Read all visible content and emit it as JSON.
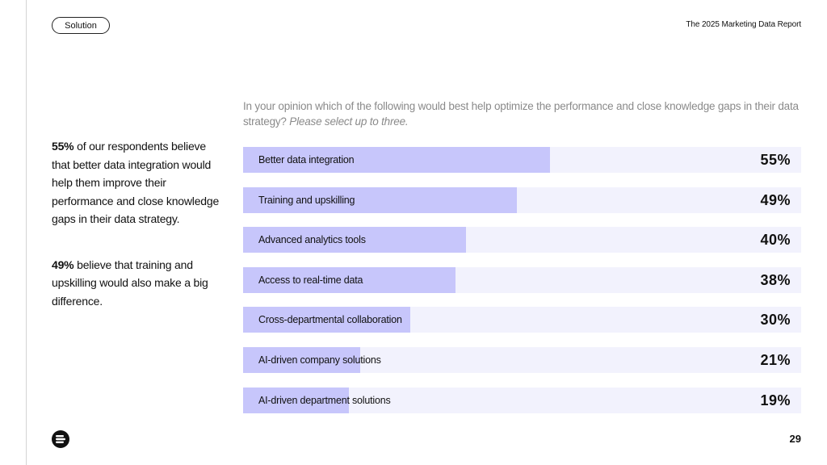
{
  "header": {
    "section_tag": "Solution",
    "report_title": "The 2025 Marketing Data Report"
  },
  "question": {
    "text": "In your opinion which of the following would best help optimize the performance and close knowledge gaps in their data strategy?",
    "instruction": "Please select up to three."
  },
  "insights": [
    {
      "stat": "55%",
      "text": "of our respondents believe that better data integration would help them improve their performance and close knowledge gaps in their data strategy."
    },
    {
      "stat": "49%",
      "text": "believe that training and upskilling would also make a big difference."
    }
  ],
  "chart_data": {
    "type": "bar",
    "orientation": "horizontal",
    "categories": [
      "Better data integration",
      "Training and upskilling",
      "Advanced analytics tools",
      "Access to real-time data",
      "Cross-departmental collaboration",
      "AI-driven company solutions",
      "AI-driven department solutions"
    ],
    "values": [
      55,
      49,
      40,
      38,
      30,
      21,
      19
    ],
    "value_labels": [
      "55%",
      "49%",
      "40%",
      "38%",
      "30%",
      "21%",
      "19%"
    ],
    "xlim": [
      0,
      100
    ],
    "colors": {
      "bar": "#c7c6fb",
      "track": "#f2f2fd"
    }
  },
  "footer": {
    "logo_icon": "brand-logo-icon",
    "page_number": "29"
  }
}
